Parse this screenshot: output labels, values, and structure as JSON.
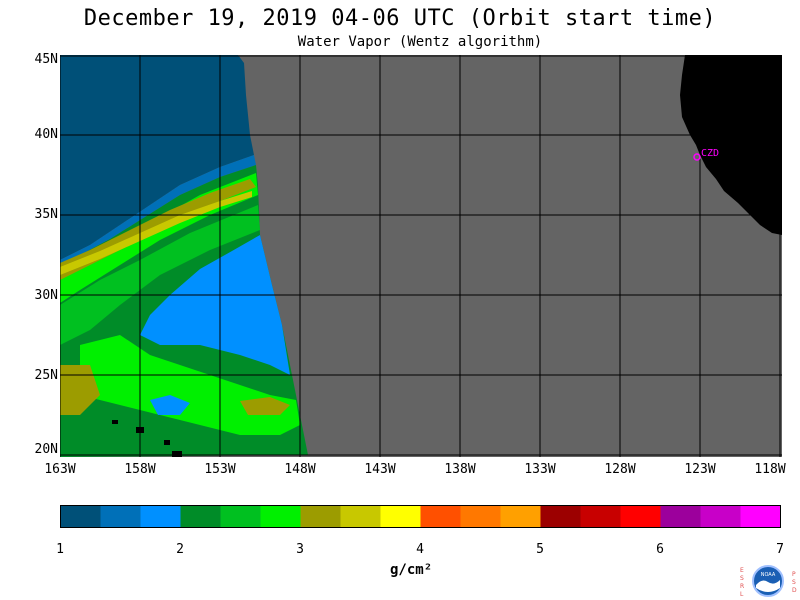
{
  "title": "December 19, 2019  04-06 UTC  (Orbit start time)",
  "subtitle": "Water Vapor (Wentz algorithm)",
  "map": {
    "lat_labels": [
      "45N",
      "40N",
      "35N",
      "30N",
      "25N",
      "20N"
    ],
    "lon_labels": [
      "163W",
      "158W",
      "153W",
      "148W",
      "143W",
      "138W",
      "133W",
      "128W",
      "123W",
      "118W"
    ],
    "station_label": "CZD",
    "colors": {
      "nodata": "#646464",
      "land": "#000000",
      "grid": "#000000",
      "station": "#ff00ff"
    }
  },
  "colorbar": {
    "tick_labels": [
      "1",
      "2",
      "3",
      "4",
      "5",
      "6",
      "7"
    ],
    "units": "g/cm²",
    "colors": [
      "#005078",
      "#0070b8",
      "#0090ff",
      "#008c28",
      "#00c020",
      "#00f000",
      "#9c9c00",
      "#c8c800",
      "#ffff00",
      "#ff5000",
      "#ff7800",
      "#ffa000",
      "#9c0000",
      "#c80000",
      "#ff0000",
      "#9c009c",
      "#c800c8",
      "#ff00ff"
    ]
  },
  "logo": {
    "left_letters": "ESRL",
    "right_letters": "PSD",
    "center_text": "NOAA"
  }
}
